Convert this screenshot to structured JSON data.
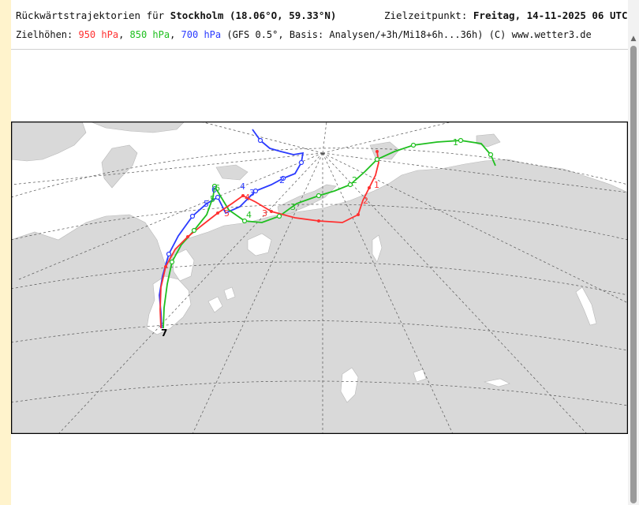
{
  "header": {
    "title_prefix": "Rückwärtstrajektorien für",
    "location": "Stockholm (18.06°O, 59.33°N)",
    "target_label": "Zielzeitpunkt:",
    "target_time": "Freitag, 14-11-2025  06 UTC",
    "levels_label": "Zielhöhen:",
    "level_950": "950 hPa",
    "level_850": "850 hPa",
    "level_700": "700 hPa",
    "source": "(GFS 0.5°, Basis: Analysen/+3h/Mi18+6h...36h)  (C) www.wetter3.de"
  },
  "colors": {
    "level_950": "#ff3030",
    "level_850": "#1fbf1f",
    "level_700": "#2b3bff",
    "land": "#d9d9d9",
    "sea": "#ffffff",
    "page_left_strip": "#fff3cc"
  },
  "map": {
    "target_marker": "7",
    "labels_950": [
      "1",
      "2",
      "3",
      "4",
      "5"
    ],
    "labels_850": [
      "1",
      "2",
      "3",
      "4",
      "5",
      "6"
    ],
    "labels_700": [
      "2",
      "3",
      "4",
      "5",
      "6"
    ]
  },
  "icons": {
    "scroll_up": "scroll-up-arrow-icon"
  }
}
